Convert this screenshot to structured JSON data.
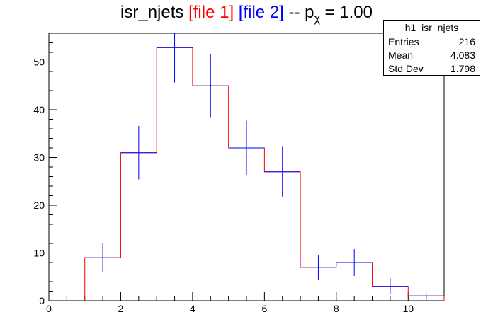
{
  "title": {
    "main": "isr_njets",
    "file1": "[file 1]",
    "file2": "[file 2]",
    "sep": "-- p",
    "sub": "χ",
    "value": " = 1.00"
  },
  "stats_box": {
    "name": "h1_isr_njets",
    "rows": [
      {
        "label": "Entries",
        "value": "216"
      },
      {
        "label": "Mean",
        "value": "4.083"
      },
      {
        "label": "Std Dev",
        "value": "1.798"
      }
    ]
  },
  "colors": {
    "file1": "#ff0000",
    "file2": "#0000ff"
  },
  "chart_data": {
    "type": "bar",
    "xlim": [
      0,
      11
    ],
    "ylim": [
      0,
      56
    ],
    "xticks": [
      "0",
      "2",
      "4",
      "6",
      "8",
      "10"
    ],
    "yticks": [
      "0",
      "10",
      "20",
      "30",
      "40",
      "50"
    ],
    "bins": [
      [
        1,
        2
      ],
      [
        2,
        3
      ],
      [
        3,
        4
      ],
      [
        4,
        5
      ],
      [
        5,
        6
      ],
      [
        6,
        7
      ],
      [
        7,
        8
      ],
      [
        8,
        9
      ],
      [
        9,
        10
      ],
      [
        10,
        11
      ]
    ],
    "series": [
      {
        "name": "[file 1]",
        "values": [
          9,
          31,
          53,
          45,
          32,
          27,
          7,
          8,
          3,
          1
        ]
      },
      {
        "name": "[file 2]",
        "values": [
          9,
          31,
          53,
          45,
          32,
          27,
          7,
          8,
          3,
          1
        ],
        "errors": [
          3,
          5.6,
          7.3,
          6.7,
          5.7,
          5.2,
          2.6,
          2.8,
          1.7,
          1
        ]
      }
    ]
  }
}
